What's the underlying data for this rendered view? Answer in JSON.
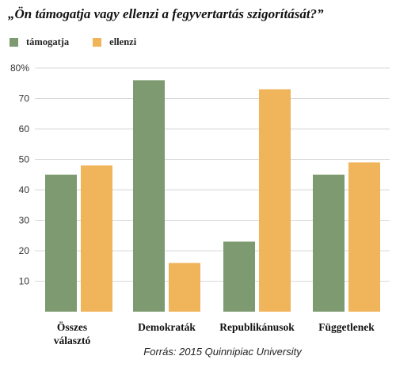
{
  "title": "„Ön támogatja vagy ellenzi a fegyvertartás szigorítását?”",
  "source": "Forrás: 2015  Quinnipiac University",
  "colors": {
    "support": "#7d9a71",
    "oppose": "#f0b45a",
    "grid": "#d9d9d9",
    "tick_text": "#333333",
    "category_text": "#111111"
  },
  "chart_data": {
    "type": "bar",
    "title": "„Ön támogatja vagy ellenzi a fegyvertartás szigorítását?”",
    "categories": [
      [
        "Összes",
        "választó"
      ],
      [
        "Demokraták"
      ],
      [
        "Republikánusok"
      ],
      [
        "Függetlenek"
      ]
    ],
    "series": [
      {
        "name": "támogatja",
        "values": [
          45,
          76,
          23,
          45
        ]
      },
      {
        "name": "ellenzi",
        "values": [
          48,
          16,
          73,
          49
        ]
      }
    ],
    "yticks": [
      "10",
      "20",
      "30",
      "40",
      "50",
      "60",
      "70",
      "80%"
    ],
    "ylim": [
      0,
      80
    ],
    "grid": true,
    "legend": "top-left",
    "xlabel": "",
    "ylabel": ""
  }
}
